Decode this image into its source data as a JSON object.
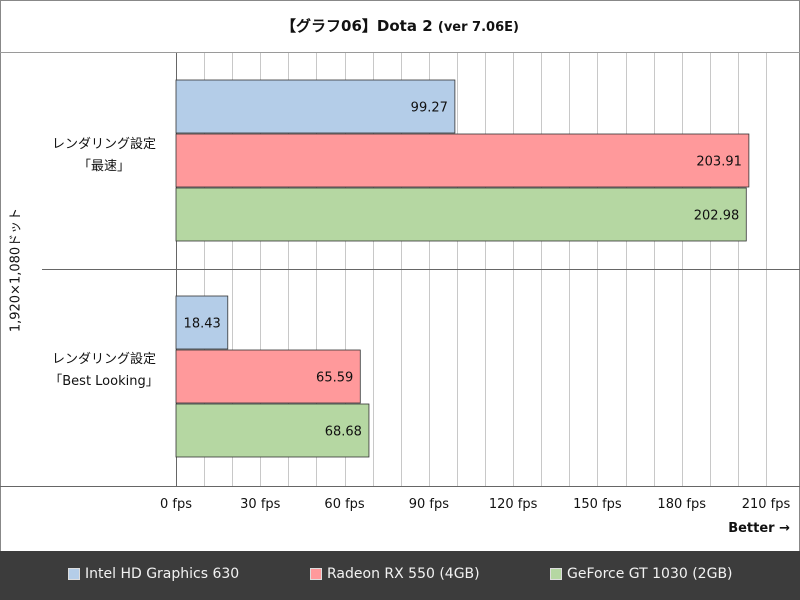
{
  "title": {
    "main": "【グラフ06】Dota 2",
    "sub": "(ver 7.06E)"
  },
  "chart_data": {
    "type": "bar",
    "orientation": "horizontal",
    "title": "【グラフ06】Dota 2 (ver 7.06E)",
    "ylabel": "1,920×1,080ドット",
    "xlim": [
      0,
      210
    ],
    "x_ticks": [
      "0 fps",
      "30 fps",
      "60 fps",
      "90 fps",
      "120 fps",
      "150 fps",
      "180 fps",
      "210 fps"
    ],
    "x_tick_values": [
      0,
      30,
      60,
      90,
      120,
      150,
      180,
      210
    ],
    "better_label": "Better →",
    "categories": [
      {
        "line1": "レンダリング設定",
        "line2": "「最速」"
      },
      {
        "line1": "レンダリング設定",
        "line2": "「Best Looking」"
      }
    ],
    "series": [
      {
        "name": "Intel HD Graphics 630",
        "color": "#b4cde8",
        "values": [
          99.27,
          18.43
        ],
        "labels": [
          "99.27",
          "18.43"
        ]
      },
      {
        "name": "Radeon RX 550 (4GB)",
        "color": "#ff999b",
        "values": [
          203.91,
          65.59
        ],
        "labels": [
          "203.91",
          "65.59"
        ]
      },
      {
        "name": "GeForce GT 1030 (2GB)",
        "color": "#b5d7a2",
        "values": [
          202.98,
          68.68
        ],
        "labels": [
          "202.98",
          "68.68"
        ]
      }
    ],
    "grid": true,
    "legend_position": "bottom"
  },
  "colors": {
    "legend_bg": "#3c3c3c",
    "grid": "#c8c8c8",
    "axis": "#666666"
  }
}
